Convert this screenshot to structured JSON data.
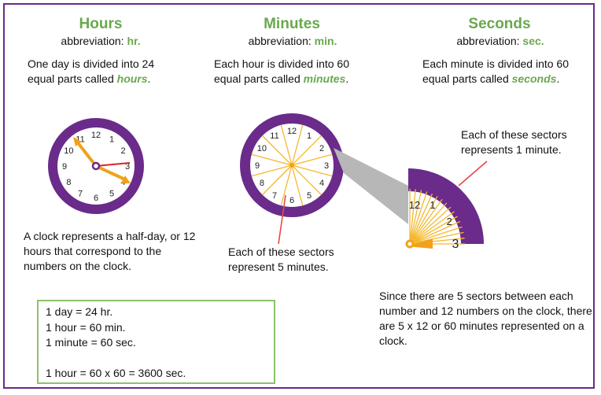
{
  "hours": {
    "title": "Hours",
    "abbr_prefix": "abbreviation: ",
    "abbr": "hr.",
    "desc_prefix": "One day is divided into 24 equal parts called ",
    "desc_keyword": "hours",
    "desc_suffix": ".",
    "note": "A clock represents a half-day, or 12 hours that correspond to the numbers on the clock."
  },
  "minutes": {
    "title": "Minutes",
    "abbr_prefix": "abbreviation: ",
    "abbr": "min.",
    "desc_prefix": "Each hour is divided into 60 equal parts called ",
    "desc_keyword": "minutes",
    "desc_suffix": ".",
    "note": "Each of these sectors represent 5 minutes."
  },
  "seconds": {
    "title": "Seconds",
    "abbr_prefix": "abbreviation: ",
    "abbr": "sec.",
    "desc_prefix": "Each minute is divided into 60 equal parts called ",
    "desc_keyword": "seconds",
    "desc_suffix": ".",
    "note": "Each of these sectors represents 1 minute."
  },
  "explanation": "Since there are 5 sectors between each number and 12 numbers on the clock, there are 5 x 12 or 60  minutes represented on a clock.",
  "summary": {
    "line1": "1 day = 24 hr.",
    "line2": "1 hour = 60 min.",
    "line3": "1 minute = 60 sec.",
    "line4": "1 hour = 60 x 60 = 3600 sec."
  },
  "clock_numbers": [
    "12",
    "1",
    "2",
    "3",
    "4",
    "5",
    "6",
    "7",
    "8",
    "9",
    "10",
    "11"
  ],
  "zoom_numbers": [
    "12",
    "1",
    "2",
    "3"
  ],
  "colors": {
    "title_green": "#6aa84f",
    "purple": "#6a2b8a",
    "hand_orange": "#f0a21a",
    "second_hand_red": "#e0212b",
    "sector_lines": "#f5b82e",
    "pointer_red": "#e8474a",
    "box_border": "#8cc26a"
  }
}
